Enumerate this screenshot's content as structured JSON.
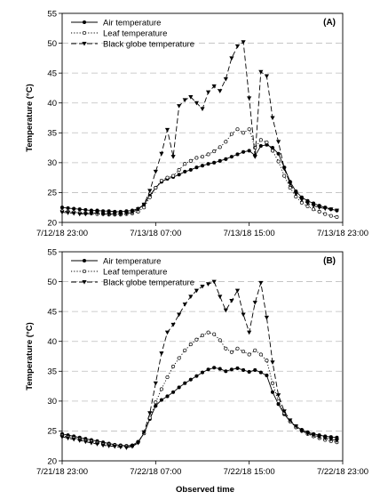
{
  "figure": {
    "xlabel": "Observed time"
  },
  "chart_data": [
    {
      "type": "line",
      "panel_label": "(A)",
      "title": "",
      "xlabel": "",
      "ylabel": "Temperature (°C)",
      "xlim": [
        0,
        24
      ],
      "ylim": [
        20,
        55
      ],
      "yticks": [
        20,
        25,
        30,
        35,
        40,
        45,
        50,
        55
      ],
      "x_ticks": [
        {
          "x": 0,
          "label": "7/12/18 23:00"
        },
        {
          "x": 8,
          "label": "7/13/18 07:00"
        },
        {
          "x": 16,
          "label": "7/13/18 15:00"
        },
        {
          "x": 24,
          "label": "7/13/18 23:00"
        }
      ],
      "grid": "horizontal dashed",
      "legend_position": "top-left",
      "x": [
        0,
        0.5,
        1,
        1.5,
        2,
        2.5,
        3,
        3.5,
        4,
        4.5,
        5,
        5.5,
        6,
        6.5,
        7,
        7.5,
        8,
        8.5,
        9,
        9.5,
        10,
        10.5,
        11,
        11.5,
        12,
        12.5,
        13,
        13.5,
        14,
        14.5,
        15,
        15.5,
        16,
        16.5,
        17,
        17.5,
        18,
        18.5,
        19,
        19.5,
        20,
        20.5,
        21,
        21.5,
        22,
        22.5,
        23,
        23.5
      ],
      "series": [
        {
          "name": "Air temperature",
          "style": "solid",
          "marker": "filled-circle",
          "values": [
            22.5,
            22.4,
            22.3,
            22.2,
            22.1,
            22.0,
            22.0,
            21.9,
            21.9,
            21.8,
            21.8,
            21.9,
            22.0,
            22.3,
            23.0,
            24.5,
            25.8,
            26.8,
            27.3,
            27.6,
            28.0,
            28.5,
            28.8,
            29.2,
            29.5,
            29.8,
            30.0,
            30.3,
            30.6,
            31.0,
            31.4,
            31.8,
            32.0,
            31.2,
            32.8,
            33.0,
            32.5,
            31.5,
            29.2,
            26.8,
            25.2,
            24.2,
            23.6,
            23.2,
            22.8,
            22.5,
            22.2,
            22.0
          ]
        },
        {
          "name": "Leaf temperature",
          "style": "dotted",
          "marker": "open-circle",
          "values": [
            21.9,
            21.8,
            21.7,
            21.6,
            21.5,
            21.5,
            21.4,
            21.4,
            21.3,
            21.3,
            21.3,
            21.4,
            21.5,
            21.8,
            22.5,
            24.2,
            25.8,
            27.0,
            27.5,
            27.8,
            28.8,
            29.8,
            30.3,
            30.8,
            31.0,
            31.4,
            31.9,
            32.6,
            33.5,
            34.8,
            35.6,
            35.0,
            35.6,
            32.5,
            33.8,
            33.4,
            32.0,
            30.2,
            27.8,
            25.8,
            24.3,
            23.3,
            22.7,
            22.2,
            21.8,
            21.4,
            21.1,
            20.9
          ]
        },
        {
          "name": "Black globe temperature",
          "style": "dashed",
          "marker": "filled-triangle-down",
          "values": [
            21.7,
            21.6,
            21.5,
            21.4,
            21.4,
            21.5,
            21.6,
            21.4,
            21.4,
            21.4,
            21.4,
            21.5,
            21.7,
            22.2,
            23.0,
            25.3,
            28.5,
            31.5,
            35.5,
            31.0,
            39.5,
            40.5,
            41.0,
            40.0,
            39.0,
            41.8,
            42.8,
            42.0,
            44.0,
            47.5,
            49.5,
            50.2,
            40.8,
            31.0,
            45.2,
            44.5,
            37.5,
            33.5,
            29.0,
            26.5,
            24.8,
            23.8,
            23.2,
            22.8,
            22.5,
            22.3,
            22.2,
            22.0
          ]
        }
      ]
    },
    {
      "type": "line",
      "panel_label": "(B)",
      "title": "",
      "xlabel": "Observed time",
      "ylabel": "Temperature (°C)",
      "xlim": [
        0,
        24
      ],
      "ylim": [
        20,
        55
      ],
      "yticks": [
        20,
        25,
        30,
        35,
        40,
        45,
        50,
        55
      ],
      "x_ticks": [
        {
          "x": 0,
          "label": "7/21/18 23:00"
        },
        {
          "x": 8,
          "label": "7/22/18 07:00"
        },
        {
          "x": 16,
          "label": "7/22/18 15:00"
        },
        {
          "x": 24,
          "label": "7/22/18 23:00"
        }
      ],
      "grid": "horizontal dashed",
      "legend_position": "top-left",
      "x": [
        0,
        0.5,
        1,
        1.5,
        2,
        2.5,
        3,
        3.5,
        4,
        4.5,
        5,
        5.5,
        6,
        6.5,
        7,
        7.5,
        8,
        8.5,
        9,
        9.5,
        10,
        10.5,
        11,
        11.5,
        12,
        12.5,
        13,
        13.5,
        14,
        14.5,
        15,
        15.5,
        16,
        16.5,
        17,
        17.5,
        18,
        18.5,
        19,
        19.5,
        20,
        20.5,
        21,
        21.5,
        22,
        22.5,
        23,
        23.5
      ],
      "series": [
        {
          "name": "Air temperature",
          "style": "solid",
          "marker": "filled-circle",
          "values": [
            24.5,
            24.3,
            24.1,
            23.9,
            23.7,
            23.5,
            23.3,
            23.1,
            22.9,
            22.7,
            22.6,
            22.5,
            22.6,
            23.2,
            24.6,
            27.0,
            29.2,
            30.2,
            30.8,
            31.5,
            32.3,
            33.0,
            33.6,
            34.2,
            34.8,
            35.3,
            35.6,
            35.4,
            35.0,
            35.3,
            35.5,
            35.2,
            34.9,
            35.2,
            34.8,
            34.3,
            31.5,
            29.5,
            27.8,
            26.6,
            25.8,
            25.2,
            24.8,
            24.5,
            24.3,
            24.1,
            24.0,
            23.9
          ]
        },
        {
          "name": "Leaf temperature",
          "style": "dotted",
          "marker": "open-circle",
          "values": [
            24.2,
            24.0,
            23.8,
            23.6,
            23.4,
            23.2,
            23.0,
            22.8,
            22.7,
            22.6,
            22.5,
            22.4,
            22.5,
            23.1,
            24.6,
            27.2,
            29.8,
            32.0,
            34.0,
            35.8,
            37.2,
            38.5,
            39.5,
            40.3,
            41.0,
            41.5,
            41.2,
            40.2,
            38.8,
            38.2,
            38.8,
            38.3,
            37.8,
            38.5,
            37.8,
            36.8,
            33.0,
            30.0,
            28.0,
            26.6,
            25.6,
            25.0,
            24.5,
            24.1,
            23.8,
            23.5,
            23.3,
            23.1
          ]
        },
        {
          "name": "Black globe temperature",
          "style": "dashed",
          "marker": "filled-triangle-down",
          "values": [
            24.0,
            23.8,
            23.6,
            23.4,
            23.2,
            23.0,
            22.8,
            22.6,
            22.5,
            22.4,
            22.3,
            22.2,
            22.4,
            23.0,
            24.8,
            28.0,
            33.0,
            38.0,
            41.5,
            42.8,
            44.5,
            46.2,
            47.5,
            48.5,
            49.2,
            49.6,
            50.0,
            47.5,
            45.2,
            46.8,
            48.5,
            44.5,
            41.5,
            46.5,
            49.8,
            44.0,
            36.5,
            31.0,
            28.3,
            26.8,
            25.8,
            25.0,
            24.6,
            24.3,
            24.0,
            23.8,
            23.6,
            23.4
          ]
        }
      ]
    }
  ]
}
